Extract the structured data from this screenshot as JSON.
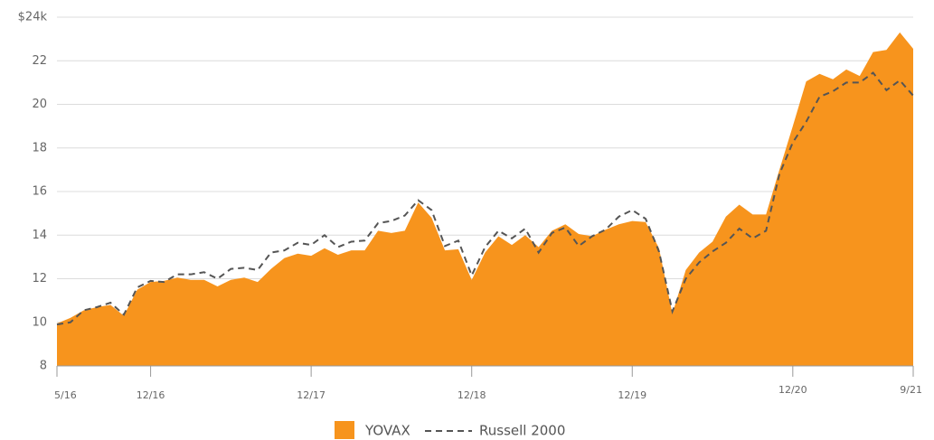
{
  "chart_data": {
    "type": "area",
    "categories": [
      "5/16",
      null,
      null,
      null,
      null,
      null,
      null,
      "12/16",
      null,
      null,
      null,
      null,
      null,
      null,
      null,
      null,
      null,
      null,
      null,
      "12/17",
      null,
      null,
      null,
      null,
      null,
      null,
      null,
      null,
      null,
      null,
      null,
      "12/18",
      null,
      null,
      null,
      null,
      null,
      null,
      null,
      null,
      null,
      null,
      null,
      "12/19",
      null,
      null,
      null,
      null,
      null,
      null,
      null,
      null,
      null,
      null,
      null,
      "12/20",
      null,
      null,
      null,
      null,
      null,
      null,
      null,
      null,
      "9/21"
    ],
    "series": [
      {
        "name": "YOVAX",
        "color": "#f7941d",
        "style": "area",
        "values": [
          9.95,
          10.2,
          10.55,
          10.7,
          10.8,
          10.3,
          11.5,
          11.85,
          11.9,
          12.05,
          11.95,
          11.95,
          11.65,
          11.95,
          12.05,
          11.85,
          12.45,
          12.95,
          13.15,
          13.05,
          13.4,
          13.1,
          13.3,
          13.3,
          14.2,
          14.1,
          14.2,
          15.5,
          14.8,
          13.3,
          13.35,
          11.95,
          13.2,
          13.95,
          13.55,
          14.0,
          13.45,
          14.2,
          14.5,
          14.05,
          13.95,
          14.25,
          14.5,
          14.65,
          14.6,
          13.4,
          10.4,
          12.4,
          13.2,
          13.7,
          14.85,
          15.4,
          14.95,
          14.95,
          17.0,
          19.0,
          21.05,
          21.4,
          21.15,
          21.6,
          21.3,
          22.4,
          22.5,
          23.3,
          22.55
        ]
      },
      {
        "name": "Russell 2000",
        "color": "#555555",
        "style": "dashed",
        "values": [
          9.9,
          10.0,
          10.55,
          10.7,
          10.9,
          10.35,
          11.6,
          11.9,
          11.85,
          12.2,
          12.2,
          12.3,
          12.0,
          12.45,
          12.5,
          12.4,
          13.2,
          13.3,
          13.65,
          13.55,
          14.0,
          13.45,
          13.7,
          13.75,
          14.55,
          14.65,
          14.9,
          15.6,
          15.15,
          13.5,
          13.75,
          12.15,
          13.45,
          14.2,
          13.85,
          14.3,
          13.2,
          14.1,
          14.35,
          13.5,
          13.95,
          14.25,
          14.85,
          15.15,
          14.75,
          13.25,
          10.5,
          12.0,
          12.75,
          13.25,
          13.65,
          14.3,
          13.85,
          14.2,
          16.8,
          18.25,
          19.2,
          20.35,
          20.6,
          21.0,
          21.0,
          21.45,
          20.65,
          21.1,
          20.4
        ]
      }
    ],
    "ylim": [
      8,
      24
    ],
    "yticks": [
      8,
      10,
      12,
      14,
      16,
      18,
      20,
      22,
      {
        "value": 24,
        "label": "$24k"
      }
    ],
    "grid": true
  }
}
